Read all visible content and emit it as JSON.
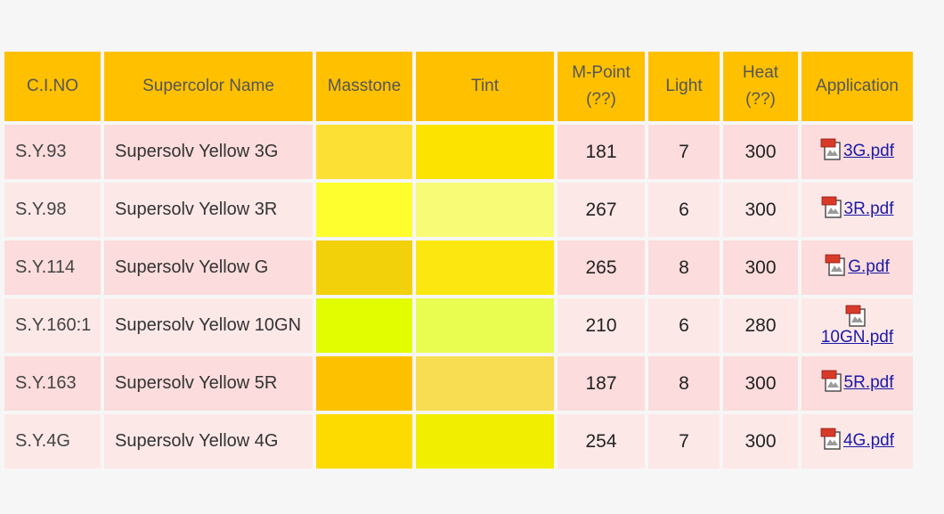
{
  "headers": {
    "cino": "C.I.NO",
    "name": "Supercolor Name",
    "masstone": "Masstone",
    "tint": "Tint",
    "mpoint_line1": "M-Point",
    "mpoint_line2": "(??)",
    "light": "Light",
    "heat_line1": "Heat",
    "heat_line2": "(??)",
    "application": "Application"
  },
  "icon": "pdf-file-icon",
  "colors": {
    "header_bg": "#ffc000",
    "row_odd_bg": "#fcdcdc",
    "row_even_bg": "#fde8e8",
    "link": "#1a1aa6"
  },
  "rows": [
    {
      "cino": "S.Y.93",
      "name": "Supersolv Yellow 3G",
      "masstone": "#fde034",
      "tint": "#fde400",
      "mpoint": "181",
      "light": "7",
      "heat": "300",
      "pdf": "3G.pdf"
    },
    {
      "cino": "S.Y.98",
      "name": "Supersolv Yellow 3R",
      "masstone": "#fefe2e",
      "tint": "#f8fb76",
      "mpoint": "267",
      "light": "6",
      "heat": "300",
      "pdf": "3R.pdf"
    },
    {
      "cino": "S.Y.114",
      "name": "Supersolv Yellow G",
      "masstone": "#f2d00a",
      "tint": "#fde710",
      "mpoint": "265",
      "light": "8",
      "heat": "300",
      "pdf": "G.pdf"
    },
    {
      "cino": "S.Y.160:1",
      "name": "Supersolv Yellow 10GN",
      "masstone": "#e1fd00",
      "tint": "#e9fc50",
      "mpoint": "210",
      "light": "6",
      "heat": "280",
      "pdf": "10GN.pdf"
    },
    {
      "cino": "S.Y.163",
      "name": "Supersolv Yellow 5R",
      "masstone": "#fec100",
      "tint": "#f8dc52",
      "mpoint": "187",
      "light": "8",
      "heat": "300",
      "pdf": "5R.pdf"
    },
    {
      "cino": "S.Y.4G",
      "name": "Supersolv Yellow 4G",
      "masstone": "#fedb00",
      "tint": "#f2ee00",
      "mpoint": "254",
      "light": "7",
      "heat": "300",
      "pdf": "4G.pdf"
    }
  ]
}
